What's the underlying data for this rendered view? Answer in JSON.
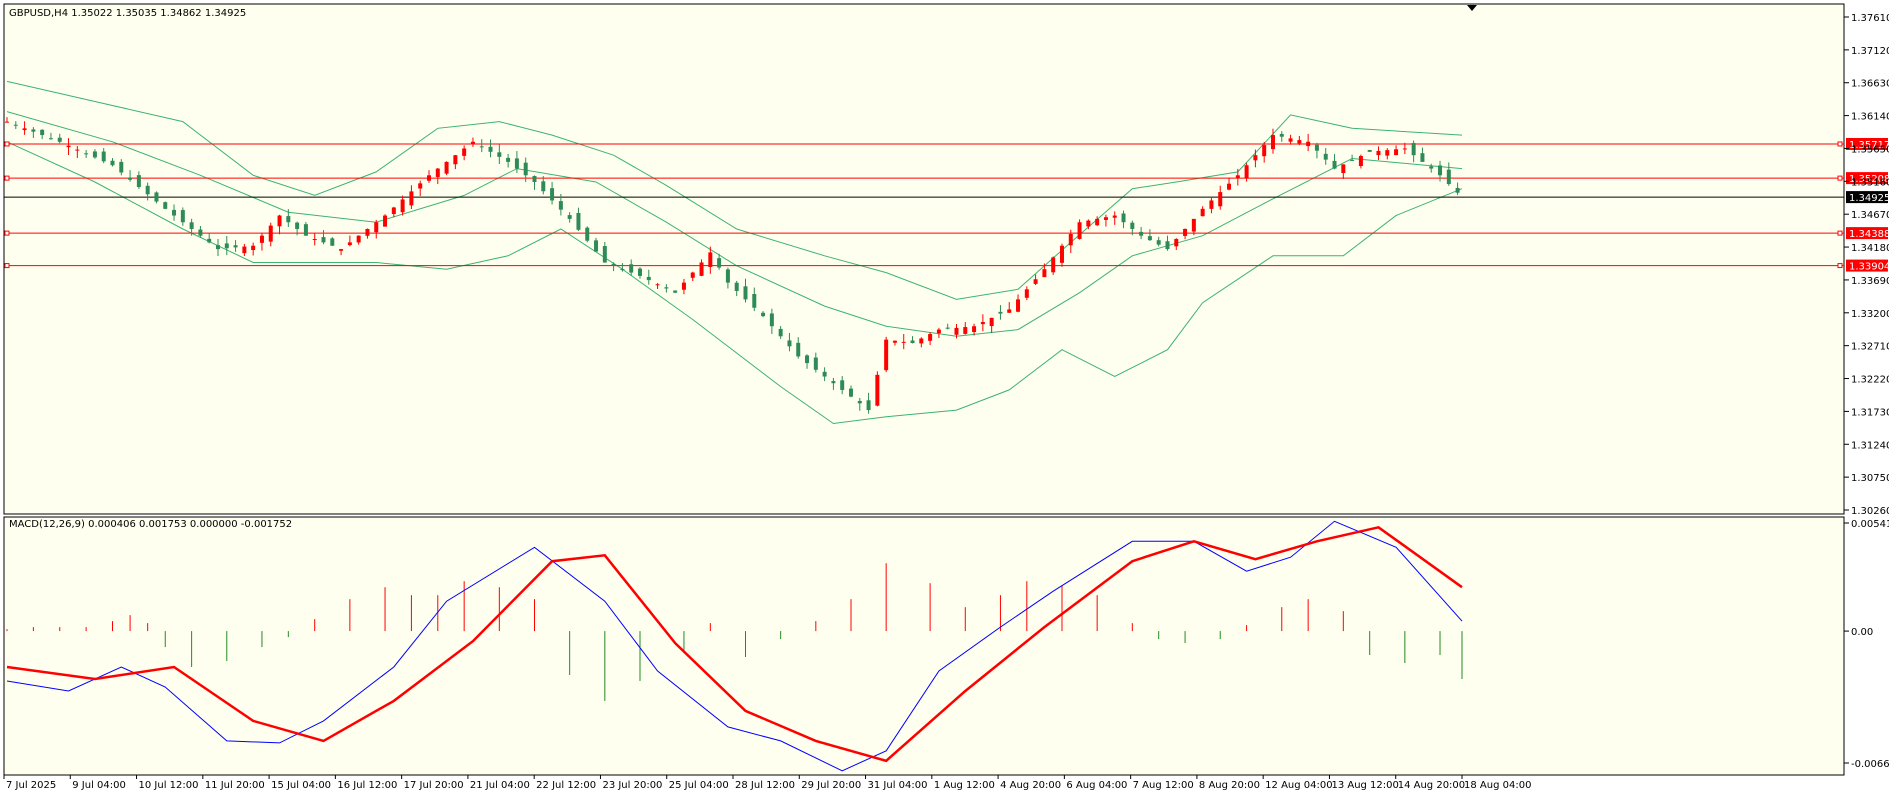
{
  "header": {
    "symbol_info": "GBPUSD,H4  1.35022 1.35035 1.34862 1.34925",
    "macd_info": "MACD(12,26,9) 0.000406 0.001753 0.000000 -0.001752"
  },
  "colors": {
    "background": "#fffff0",
    "bull_candle": "#2e8b57",
    "bear_candle": "#ff0000",
    "bollinger": "#3cb371",
    "hline": "#ff0000",
    "current_price_line": "#000000",
    "macd_line": "#0000ff",
    "signal_line": "#ff0000",
    "hist_positive": "#ff0000",
    "hist_negative": "#228b22"
  },
  "chart_data": [
    {
      "type": "candlestick",
      "symbol": "GBPUSD",
      "timeframe": "H4",
      "ohlc_last": {
        "open": 1.35022,
        "high": 1.35035,
        "low": 1.34862,
        "close": 1.34925
      },
      "ylim": [
        1.3026,
        1.3761
      ],
      "yticks": [
        "1.37610",
        "1.37120",
        "1.36630",
        "1.36140",
        "1.35650",
        "1.35160",
        "1.34670",
        "1.34180",
        "1.33690",
        "1.33200",
        "1.32710",
        "1.32220",
        "1.31730",
        "1.31240",
        "1.30750",
        "1.30260"
      ],
      "x_labels": [
        "7 Jul 2025",
        "9 Jul 04:00",
        "10 Jul 12:00",
        "11 Jul 20:00",
        "15 Jul 04:00",
        "16 Jul 12:00",
        "17 Jul 20:00",
        "21 Jul 04:00",
        "22 Jul 12:00",
        "23 Jul 20:00",
        "25 Jul 04:00",
        "28 Jul 12:00",
        "29 Jul 20:00",
        "31 Jul 04:00",
        "1 Aug 12:00",
        "4 Aug 20:00",
        "6 Aug 04:00",
        "7 Aug 12:00",
        "8 Aug 20:00",
        "12 Aug 04:00",
        "13 Aug 12:00",
        "14 Aug 20:00",
        "18 Aug 04:00"
      ],
      "close_path": [
        [
          0,
          1.3605
        ],
        [
          12,
          1.3575
        ],
        [
          24,
          1.354
        ],
        [
          36,
          1.3475
        ],
        [
          48,
          1.3415
        ],
        [
          56,
          1.342
        ],
        [
          62,
          1.3465
        ],
        [
          68,
          1.3435
        ],
        [
          76,
          1.3415
        ],
        [
          86,
          1.3465
        ],
        [
          96,
          1.3525
        ],
        [
          106,
          1.3575
        ],
        [
          114,
          1.3545
        ],
        [
          120,
          1.3515
        ],
        [
          128,
          1.346
        ],
        [
          136,
          1.3395
        ],
        [
          144,
          1.3375
        ],
        [
          152,
          1.335
        ],
        [
          160,
          1.341
        ],
        [
          164,
          1.3365
        ],
        [
          172,
          1.3315
        ],
        [
          180,
          1.3255
        ],
        [
          188,
          1.3215
        ],
        [
          196,
          1.3175
        ],
        [
          200,
          1.328
        ],
        [
          206,
          1.3275
        ],
        [
          212,
          1.3295
        ],
        [
          220,
          1.33
        ],
        [
          228,
          1.3325
        ],
        [
          236,
          1.3385
        ],
        [
          244,
          1.3455
        ],
        [
          252,
          1.3465
        ],
        [
          258,
          1.3435
        ],
        [
          264,
          1.3415
        ],
        [
          272,
          1.3475
        ],
        [
          280,
          1.3525
        ],
        [
          288,
          1.3585
        ],
        [
          296,
          1.3575
        ],
        [
          302,
          1.3535
        ],
        [
          310,
          1.356
        ],
        [
          318,
          1.3565
        ],
        [
          326,
          1.3525
        ],
        [
          331,
          1.34925
        ]
      ],
      "bollinger_upper": [
        [
          0,
          1.3665
        ],
        [
          20,
          1.3635
        ],
        [
          40,
          1.3605
        ],
        [
          56,
          1.3525
        ],
        [
          70,
          1.3495
        ],
        [
          84,
          1.353
        ],
        [
          98,
          1.3595
        ],
        [
          112,
          1.3605
        ],
        [
          124,
          1.3585
        ],
        [
          138,
          1.3555
        ],
        [
          150,
          1.351
        ],
        [
          166,
          1.3445
        ],
        [
          186,
          1.3405
        ],
        [
          200,
          1.338
        ],
        [
          216,
          1.334
        ],
        [
          230,
          1.3355
        ],
        [
          242,
          1.3425
        ],
        [
          256,
          1.3505
        ],
        [
          266,
          1.3515
        ],
        [
          280,
          1.353
        ],
        [
          292,
          1.3615
        ],
        [
          306,
          1.3595
        ],
        [
          331,
          1.3585
        ]
      ],
      "bollinger_middle": [
        [
          0,
          1.362
        ],
        [
          24,
          1.3575
        ],
        [
          44,
          1.3525
        ],
        [
          64,
          1.347
        ],
        [
          84,
          1.3455
        ],
        [
          104,
          1.3495
        ],
        [
          116,
          1.3535
        ],
        [
          134,
          1.3515
        ],
        [
          150,
          1.3455
        ],
        [
          166,
          1.339
        ],
        [
          186,
          1.333
        ],
        [
          200,
          1.33
        ],
        [
          216,
          1.3285
        ],
        [
          230,
          1.3295
        ],
        [
          244,
          1.335
        ],
        [
          256,
          1.3405
        ],
        [
          272,
          1.3435
        ],
        [
          288,
          1.349
        ],
        [
          306,
          1.355
        ],
        [
          331,
          1.3535
        ]
      ],
      "bollinger_lower": [
        [
          0,
          1.3575
        ],
        [
          20,
          1.3515
        ],
        [
          40,
          1.3445
        ],
        [
          56,
          1.3395
        ],
        [
          70,
          1.3395
        ],
        [
          84,
          1.3395
        ],
        [
          100,
          1.3385
        ],
        [
          114,
          1.3405
        ],
        [
          126,
          1.3445
        ],
        [
          140,
          1.3385
        ],
        [
          156,
          1.331
        ],
        [
          176,
          1.321
        ],
        [
          188,
          1.3155
        ],
        [
          200,
          1.3165
        ],
        [
          216,
          1.3175
        ],
        [
          228,
          1.3205
        ],
        [
          240,
          1.3265
        ],
        [
          252,
          1.3225
        ],
        [
          264,
          1.3265
        ],
        [
          272,
          1.3335
        ],
        [
          288,
          1.3405
        ],
        [
          304,
          1.3405
        ],
        [
          316,
          1.3465
        ],
        [
          331,
          1.3505
        ]
      ],
      "horizontal_levels": [
        {
          "label": "1.35717",
          "value": 1.35717
        },
        {
          "label": "1.35208",
          "value": 1.35208
        },
        {
          "label": "1.34388",
          "value": 1.34388
        },
        {
          "label": "1.33904",
          "value": 1.33904
        }
      ],
      "current_price": {
        "label": "1.34925",
        "value": 1.34925
      }
    },
    {
      "type": "line",
      "name": "MACD(12,26,9)",
      "ylim": [
        -0.006609,
        0.005416
      ],
      "yticks": [
        "0.005416",
        "0.00",
        "-0.006609"
      ],
      "series": [
        {
          "name": "macd",
          "points": [
            [
              0,
              -0.0025
            ],
            [
              14,
              -0.003
            ],
            [
              26,
              -0.0018
            ],
            [
              36,
              -0.0028
            ],
            [
              50,
              -0.0055
            ],
            [
              62,
              -0.0056
            ],
            [
              72,
              -0.0045
            ],
            [
              88,
              -0.0018
            ],
            [
              100,
              0.0015
            ],
            [
              120,
              0.0042
            ],
            [
              136,
              0.0015
            ],
            [
              148,
              -0.002
            ],
            [
              164,
              -0.0048
            ],
            [
              176,
              -0.0055
            ],
            [
              190,
              -0.007
            ],
            [
              200,
              -0.006
            ],
            [
              212,
              -0.002
            ],
            [
              226,
              0.0002
            ],
            [
              238,
              0.002
            ],
            [
              256,
              0.0045
            ],
            [
              270,
              0.0045
            ],
            [
              282,
              0.003
            ],
            [
              292,
              0.0037
            ],
            [
              302,
              0.0055
            ],
            [
              316,
              0.0042
            ],
            [
              331,
              0.0005
            ]
          ]
        },
        {
          "name": "signal",
          "points": [
            [
              0,
              -0.0018
            ],
            [
              20,
              -0.0024
            ],
            [
              38,
              -0.0018
            ],
            [
              56,
              -0.0045
            ],
            [
              72,
              -0.0055
            ],
            [
              88,
              -0.0035
            ],
            [
              106,
              -0.0005
            ],
            [
              124,
              0.0035
            ],
            [
              136,
              0.0038
            ],
            [
              152,
              -0.0006
            ],
            [
              168,
              -0.004
            ],
            [
              184,
              -0.0055
            ],
            [
              200,
              -0.0065
            ],
            [
              218,
              -0.003
            ],
            [
              236,
              0.0002
            ],
            [
              256,
              0.0035
            ],
            [
              270,
              0.0045
            ],
            [
              284,
              0.0036
            ],
            [
              298,
              0.0045
            ],
            [
              312,
              0.0052
            ],
            [
              331,
              0.0022
            ]
          ]
        }
      ],
      "histogram": [
        [
          0,
          0.0001
        ],
        [
          6,
          0.0002
        ],
        [
          12,
          0.0002
        ],
        [
          18,
          0.0002
        ],
        [
          24,
          0.0005
        ],
        [
          28,
          0.0008
        ],
        [
          32,
          0.0004
        ],
        [
          36,
          -0.0008
        ],
        [
          42,
          -0.0018
        ],
        [
          50,
          -0.0015
        ],
        [
          58,
          -0.0008
        ],
        [
          64,
          -0.0003
        ],
        [
          70,
          0.0006
        ],
        [
          78,
          0.0016
        ],
        [
          86,
          0.0022
        ],
        [
          92,
          0.0018
        ],
        [
          98,
          0.0018
        ],
        [
          104,
          0.0025
        ],
        [
          112,
          0.0022
        ],
        [
          120,
          0.0016
        ],
        [
          128,
          -0.0022
        ],
        [
          136,
          -0.0035
        ],
        [
          144,
          -0.0025
        ],
        [
          154,
          -0.0011
        ],
        [
          160,
          0.0004
        ],
        [
          168,
          -0.0013
        ],
        [
          176,
          -0.0004
        ],
        [
          184,
          0.0005
        ],
        [
          192,
          0.0016
        ],
        [
          200,
          0.0034
        ],
        [
          210,
          0.0024
        ],
        [
          218,
          0.0012
        ],
        [
          226,
          0.0018
        ],
        [
          232,
          0.0025
        ],
        [
          240,
          0.0023
        ],
        [
          248,
          0.0018
        ],
        [
          256,
          0.0004
        ],
        [
          262,
          -0.0004
        ],
        [
          268,
          -0.0006
        ],
        [
          276,
          -0.0004
        ],
        [
          282,
          0.0003
        ],
        [
          290,
          0.0012
        ],
        [
          296,
          0.0016
        ],
        [
          304,
          0.001
        ],
        [
          310,
          -0.0012
        ],
        [
          318,
          -0.0016
        ],
        [
          326,
          -0.0012
        ],
        [
          331,
          -0.0024
        ]
      ]
    }
  ]
}
